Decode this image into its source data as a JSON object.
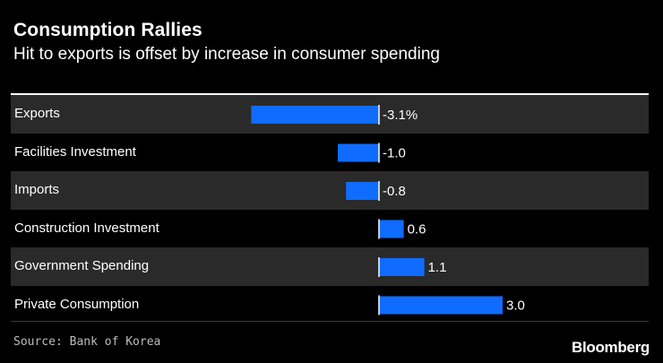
{
  "header": {
    "title": "Consumption Rallies",
    "subtitle": "Hit to exports is offset by increase in consumer spending"
  },
  "chart_data": {
    "type": "bar",
    "orientation": "horizontal",
    "categories": [
      "Exports",
      "Facilities Investment",
      "Imports",
      "Construction Investment",
      "Government Spending",
      "Private Consumption"
    ],
    "values": [
      -3.1,
      -1.0,
      -0.8,
      0.6,
      1.1,
      3.0
    ],
    "value_labels": [
      "-3.1%",
      "-1.0",
      "-0.8",
      "0.6",
      "1.1",
      "3.0"
    ],
    "unit": "%",
    "xlim": [
      -3.1,
      3.0
    ],
    "bar_color": "#0f6cff",
    "grid": false
  },
  "footer": {
    "source": "Source: Bank of Korea",
    "brand": "Bloomberg"
  }
}
